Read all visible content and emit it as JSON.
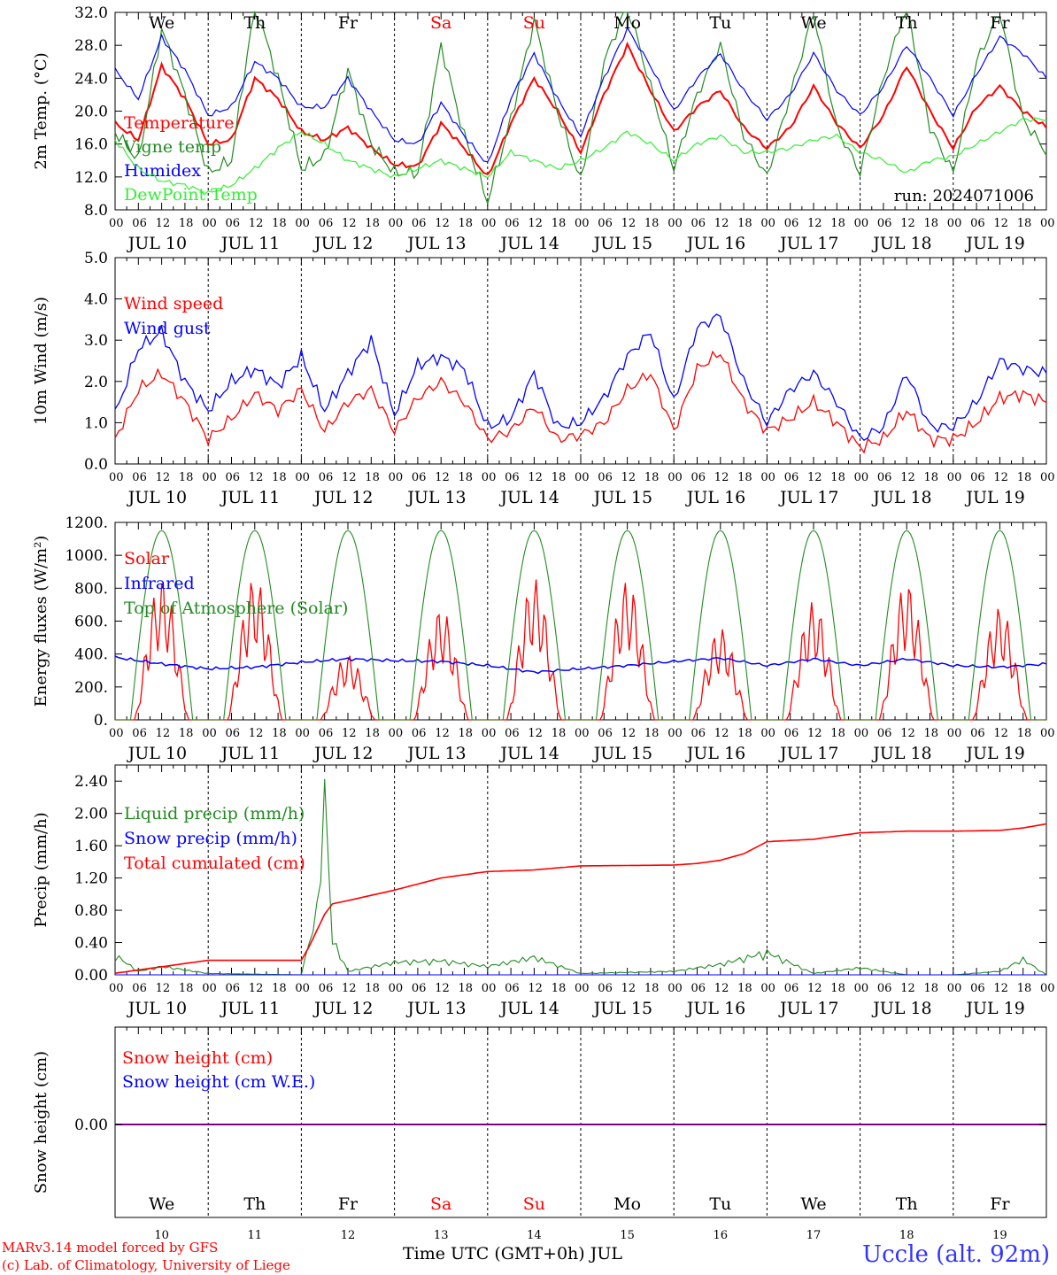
{
  "footer": {
    "credit_line1": "MARv3.14 model forced by GFS",
    "credit_line2": "(c) Lab. of Climatology, University of Liege",
    "station": "Uccle (alt. 92m)",
    "x_title": "Time UTC (GMT+0h) JUL"
  },
  "colors": {
    "red": "#ff0000",
    "darkgreen": "#228b22",
    "blue": "#0000ff",
    "lightgreen": "#33ee33",
    "purple": "#7f007f",
    "grid": "#000000"
  },
  "chart_data": [
    {
      "type": "line",
      "panel": "temperature",
      "ylabel": "2m Temp. (°C)",
      "ylim": [
        8,
        32
      ],
      "yticks": [
        "8.0",
        "12.0",
        "16.0",
        "20.0",
        "24.0",
        "28.0",
        "32.0"
      ],
      "run_label": "run: 2024071006",
      "hour_ticks": [
        "00",
        "06",
        "12",
        "18"
      ],
      "day_labels": [
        "JUL 10",
        "JUL 11",
        "JUL 12",
        "JUL 13",
        "JUL 14",
        "JUL 15",
        "JUL 16",
        "JUL 17",
        "JUL 18",
        "JUL 19"
      ],
      "weekdays": [
        "We",
        "Th",
        "Fr",
        "Sa",
        "Su",
        "Mo",
        "Tu",
        "We",
        "Th",
        "Fr"
      ],
      "weekend": [
        false,
        false,
        false,
        true,
        true,
        false,
        false,
        false,
        false,
        false
      ],
      "x_hours": [
        0,
        6,
        12,
        18,
        24,
        30,
        36,
        42,
        48,
        54,
        60,
        66,
        72,
        78,
        84,
        90,
        96,
        102,
        108,
        114,
        120,
        126,
        132,
        138,
        144,
        150,
        156,
        162,
        168,
        174,
        180,
        186,
        192,
        198,
        204,
        210,
        216,
        222,
        228,
        234,
        240
      ],
      "series": [
        {
          "name": "Temperature",
          "color": "#ff0000",
          "values": [
            18.5,
            16.5,
            25.5,
            21.5,
            16.0,
            16.5,
            24.0,
            21.5,
            17.5,
            16.5,
            18.0,
            15.5,
            13.5,
            13.3,
            18.5,
            15.5,
            12.0,
            18.5,
            24.0,
            20.0,
            15.0,
            22.0,
            28.0,
            22.5,
            17.5,
            20.5,
            22.5,
            18.0,
            15.5,
            18.0,
            23.0,
            18.5,
            15.5,
            19.5,
            25.5,
            20.0,
            15.5,
            20.5,
            23.0,
            20.0,
            18.0
          ]
        },
        {
          "name": "Vigne temp",
          "color": "#228b22",
          "values": [
            17.5,
            14.0,
            30.0,
            22.0,
            12.5,
            14.0,
            33.0,
            24.0,
            13.0,
            14.5,
            25.0,
            16.0,
            12.5,
            12.5,
            28.0,
            17.0,
            9.0,
            19.0,
            31.0,
            20.0,
            11.5,
            26.0,
            33.0,
            23.0,
            13.0,
            22.0,
            28.0,
            17.0,
            12.0,
            22.0,
            32.0,
            18.0,
            12.5,
            24.0,
            33.0,
            18.0,
            12.5,
            26.0,
            32.0,
            19.0,
            15.0
          ]
        },
        {
          "name": "Humidex",
          "color": "#0000ff",
          "values": [
            25.0,
            21.5,
            29.0,
            25.0,
            19.5,
            20.5,
            26.0,
            24.0,
            20.5,
            20.5,
            24.0,
            20.0,
            16.5,
            16.0,
            21.0,
            17.0,
            13.5,
            21.5,
            27.0,
            21.5,
            17.0,
            24.0,
            30.0,
            25.5,
            20.0,
            24.0,
            27.0,
            22.5,
            19.0,
            22.0,
            27.0,
            22.5,
            19.5,
            23.0,
            28.0,
            24.0,
            19.5,
            24.5,
            29.0,
            27.0,
            24.0
          ]
        },
        {
          "name": "DewPoint Temp",
          "color": "#33ee33",
          "values": [
            16.5,
            13.0,
            11.5,
            11.0,
            10.0,
            11.0,
            13.0,
            15.5,
            17.5,
            16.0,
            14.0,
            13.0,
            12.0,
            13.0,
            14.0,
            13.0,
            12.0,
            15.0,
            14.0,
            13.0,
            14.0,
            15.5,
            17.5,
            16.0,
            14.0,
            16.0,
            17.0,
            15.0,
            15.0,
            15.5,
            16.5,
            17.0,
            15.0,
            14.0,
            12.5,
            14.0,
            14.5,
            16.0,
            17.5,
            19.0,
            19.0
          ]
        }
      ]
    },
    {
      "type": "line",
      "panel": "wind",
      "ylabel": "10m Wind (m/s)",
      "ylim": [
        0,
        5
      ],
      "yticks": [
        "0.0",
        "1.0",
        "2.0",
        "3.0",
        "4.0",
        "5.0"
      ],
      "hour_ticks": [
        "00",
        "06",
        "12",
        "18"
      ],
      "day_labels": [
        "JUL 10",
        "JUL 11",
        "JUL 12",
        "JUL 13",
        "JUL 14",
        "JUL 15",
        "JUL 16",
        "JUL 17",
        "JUL 18",
        "JUL 19"
      ],
      "x_hours": [
        0,
        6,
        12,
        18,
        24,
        30,
        36,
        42,
        48,
        54,
        60,
        66,
        72,
        78,
        84,
        90,
        96,
        102,
        108,
        114,
        120,
        126,
        132,
        138,
        144,
        150,
        156,
        162,
        168,
        174,
        180,
        186,
        192,
        198,
        204,
        210,
        216,
        222,
        228,
        234,
        240
      ],
      "series": [
        {
          "name": "Wind speed",
          "color": "#ff0000",
          "values": [
            0.6,
            1.8,
            2.2,
            1.5,
            0.6,
            1.1,
            1.7,
            1.3,
            1.8,
            0.8,
            1.5,
            1.8,
            0.8,
            1.6,
            2.0,
            1.5,
            0.6,
            0.8,
            1.4,
            0.6,
            0.7,
            1.0,
            1.8,
            2.2,
            0.8,
            2.3,
            2.7,
            1.5,
            0.8,
            1.1,
            1.5,
            1.0,
            0.4,
            0.6,
            1.3,
            0.6,
            0.6,
            1.0,
            1.6,
            1.7,
            1.5
          ]
        },
        {
          "name": "Wind gust",
          "color": "#0000ff",
          "values": [
            1.2,
            2.8,
            3.2,
            2.0,
            1.3,
            2.0,
            2.3,
            1.9,
            2.6,
            1.3,
            2.2,
            3.0,
            1.2,
            2.4,
            2.6,
            2.3,
            0.9,
            1.1,
            2.2,
            0.9,
            1.0,
            1.6,
            2.6,
            3.2,
            1.5,
            3.3,
            3.6,
            2.0,
            1.0,
            1.8,
            2.2,
            1.5,
            0.6,
            0.9,
            2.2,
            0.9,
            0.9,
            1.5,
            2.5,
            2.3,
            2.2
          ]
        }
      ]
    },
    {
      "type": "line",
      "panel": "energy",
      "ylabel": "Energy fluxes (W/m²)",
      "ylim": [
        0,
        1200
      ],
      "yticks": [
        "0.",
        "200.",
        "400.",
        "600.",
        "800.",
        "1000.",
        "1200."
      ],
      "hour_ticks": [
        "00",
        "06",
        "12",
        "18"
      ],
      "day_labels": [
        "JUL 10",
        "JUL 11",
        "JUL 12",
        "JUL 13",
        "JUL 14",
        "JUL 15",
        "JUL 16",
        "JUL 17",
        "JUL 18",
        "JUL 19"
      ],
      "solar_peaks": [
        860,
        870,
        400,
        680,
        860,
        850,
        560,
        720,
        840,
        690
      ],
      "toa_peak": 1150,
      "infrared_x_hours": [
        0,
        12,
        24,
        36,
        48,
        60,
        72,
        84,
        96,
        108,
        120,
        132,
        144,
        156,
        168,
        180,
        192,
        204,
        216,
        228,
        240
      ],
      "series": [
        {
          "name": "Solar",
          "color": "#ff0000"
        },
        {
          "name": "Infrared",
          "color": "#0000ff",
          "values": [
            380,
            340,
            310,
            320,
            350,
            370,
            360,
            355,
            330,
            290,
            310,
            330,
            355,
            375,
            330,
            370,
            330,
            370,
            330,
            320,
            340
          ]
        },
        {
          "name": "Top of Atmosphere (Solar)",
          "color": "#228b22"
        }
      ]
    },
    {
      "type": "line",
      "panel": "precip",
      "ylabel": "Precip (mm/h)",
      "ylim": [
        0,
        2.6
      ],
      "yticks": [
        "0.00",
        "0.40",
        "0.80",
        "1.20",
        "1.60",
        "2.00",
        "2.40"
      ],
      "hour_ticks": [
        "00",
        "06",
        "12",
        "18"
      ],
      "day_labels": [
        "JUL 10",
        "JUL 11",
        "JUL 12",
        "JUL 13",
        "JUL 14",
        "JUL 15",
        "JUL 16",
        "JUL 17",
        "JUL 18",
        "JUL 19"
      ],
      "liquid_x_hours": [
        0,
        6,
        12,
        24,
        48,
        52,
        54,
        56,
        60,
        72,
        84,
        96,
        108,
        120,
        144,
        156,
        168,
        180,
        192,
        204,
        216,
        228,
        234,
        240
      ],
      "cumulated_x_hours": [
        0,
        12,
        24,
        48,
        50,
        54,
        56,
        60,
        72,
        84,
        96,
        108,
        120,
        144,
        150,
        156,
        162,
        168,
        180,
        192,
        204,
        216,
        228,
        234,
        240
      ],
      "series": [
        {
          "name": "Liquid precip (mm/h)",
          "color": "#228b22",
          "values": [
            0.28,
            0.05,
            0.12,
            0.02,
            0.0,
            0.9,
            2.55,
            0.5,
            0.05,
            0.18,
            0.2,
            0.12,
            0.25,
            0.02,
            0.05,
            0.15,
            0.32,
            0.02,
            0.1,
            0.0,
            0.0,
            0.05,
            0.22,
            0.0
          ]
        },
        {
          "name": "Snow precip (mm/h)",
          "color": "#0000ff",
          "values": []
        },
        {
          "name": "Total cumulated (cm)",
          "color": "#ff0000",
          "values": [
            0.02,
            0.1,
            0.18,
            0.18,
            0.35,
            0.75,
            0.88,
            0.92,
            1.05,
            1.2,
            1.28,
            1.3,
            1.35,
            1.36,
            1.38,
            1.42,
            1.5,
            1.65,
            1.68,
            1.76,
            1.78,
            1.78,
            1.79,
            1.82,
            1.87
          ]
        }
      ]
    },
    {
      "type": "line",
      "panel": "snow",
      "ylabel": "Snow height (cm)",
      "yticks": [
        "0.00"
      ],
      "weekdays": [
        "We",
        "Th",
        "Fr",
        "Sa",
        "Su",
        "Mo",
        "Tu",
        "We",
        "Th",
        "Fr"
      ],
      "weekend": [
        false,
        false,
        false,
        true,
        true,
        false,
        false,
        false,
        false,
        false
      ],
      "day_numbers": [
        "10",
        "11",
        "12",
        "13",
        "14",
        "15",
        "16",
        "17",
        "18",
        "19"
      ],
      "series": [
        {
          "name": "Snow height (cm)",
          "color": "#ff0000",
          "values": [
            0,
            0
          ]
        },
        {
          "name": "Snow height (cm W.E.)",
          "color": "#0000ff",
          "values": [
            0,
            0
          ]
        }
      ]
    }
  ]
}
